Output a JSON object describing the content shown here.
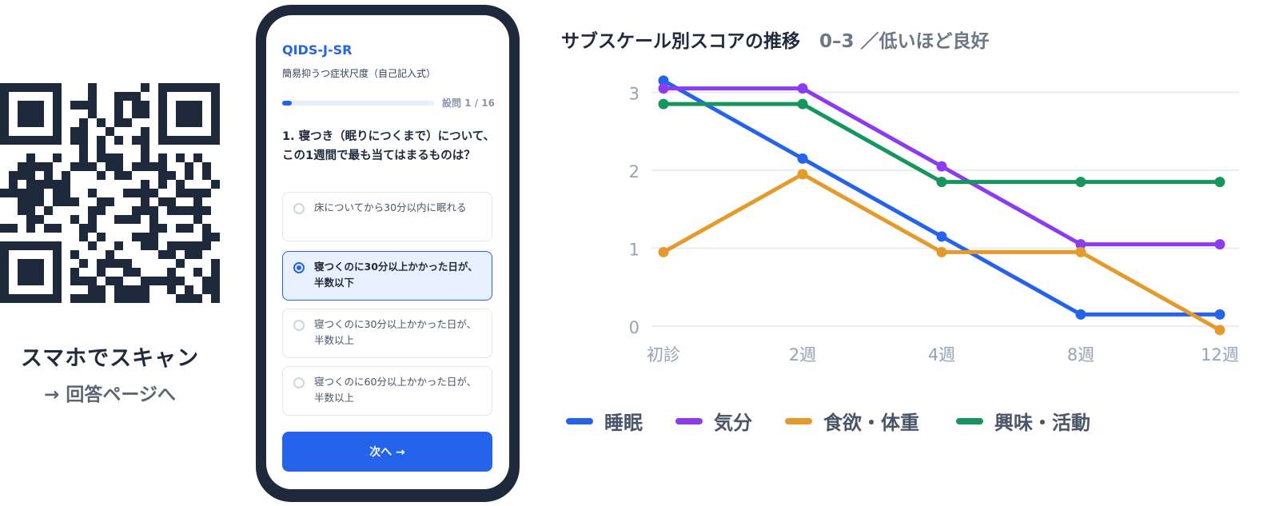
{
  "qr": {
    "caption": "スマホでスキャン",
    "subcaption": "→ 回答ページへ",
    "color": "#1e293b"
  },
  "phone": {
    "title": "QIDS-J-SR",
    "subtitle": "簡易抑うつ症状尺度（自己記入式）",
    "progress": {
      "current": 1,
      "total": 16,
      "label": "設問 1 / 16",
      "fraction": 0.0625
    },
    "question": "1. 寝つき（眠りにつくまで）について、この1週間で最も当てはまるものは？",
    "options": [
      {
        "label": "床についてから30分以内に眠れる",
        "selected": false
      },
      {
        "label": "寝つくのに30分以上かかった日が、半数以下",
        "selected": true
      },
      {
        "label": "寝つくのに30分以上かかった日が、半数以上",
        "selected": false
      },
      {
        "label": "寝つくのに60分以上かかった日が、半数以上",
        "selected": false
      }
    ],
    "next_label": "次へ →",
    "accent": "#2563eb",
    "frame_color": "#1e293b"
  },
  "chart": {
    "title": "サブスケール別スコアの推移",
    "subtitle": "0–3 ／低いほど良好"
  },
  "chart_data": {
    "type": "line",
    "title": "サブスケール別スコアの推移",
    "subtitle": "0–3 ／低いほど良好",
    "categories": [
      "初診",
      "2週",
      "4週",
      "8週",
      "12週"
    ],
    "yticks": [
      "0",
      "1",
      "2",
      "3"
    ],
    "ylim": [
      -0.1,
      3.15
    ],
    "grid": true,
    "legend_position": "bottom",
    "series": [
      {
        "name": "睡眠",
        "color": "#2563eb",
        "values": [
          3.15,
          2.15,
          1.15,
          0.15,
          0.15
        ]
      },
      {
        "name": "気分",
        "color": "#8b3cf0",
        "values": [
          3.05,
          3.05,
          2.05,
          1.05,
          1.05
        ]
      },
      {
        "name": "食欲・体重",
        "color": "#e59a2c",
        "values": [
          0.95,
          1.95,
          0.95,
          0.95,
          -0.05
        ]
      },
      {
        "name": "興味・活動",
        "color": "#16955d",
        "values": [
          2.85,
          2.85,
          1.85,
          1.85,
          1.85
        ]
      }
    ]
  }
}
